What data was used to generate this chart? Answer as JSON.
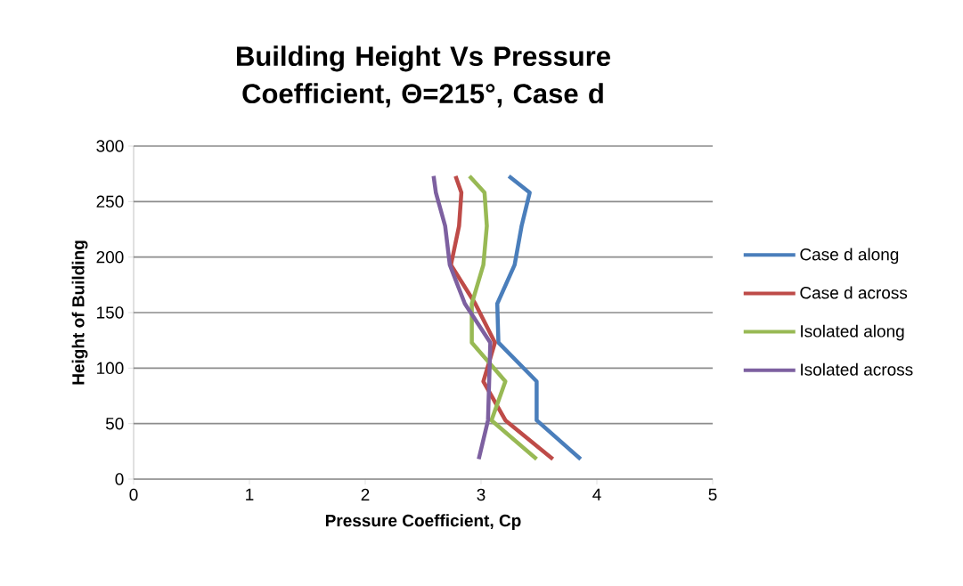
{
  "chart_data": {
    "type": "line",
    "title": "Building Height Vs Pressure Coefficient, Θ=215°, Case d",
    "xlabel": "Pressure Coefficient, Cp",
    "ylabel": "Height of Building",
    "xlim": [
      0,
      5
    ],
    "xticks": [
      0,
      1,
      2,
      3,
      4,
      5
    ],
    "ylim": [
      0,
      300
    ],
    "yticks": [
      0,
      50,
      100,
      150,
      200,
      250,
      300
    ],
    "grid": "y",
    "legend": "right",
    "marker": "none",
    "line_style": "solid",
    "series": [
      {
        "name": "Case d along",
        "color": "#4a7ebb",
        "x": [
          3.86,
          3.48,
          3.48,
          3.15,
          3.14,
          3.29,
          3.35,
          3.42,
          3.24
        ],
        "values": [
          18,
          53,
          88,
          123,
          158,
          193,
          228,
          258,
          273
        ]
      },
      {
        "name": "Case d across",
        "color": "#be4b48",
        "x": [
          3.62,
          3.21,
          3.02,
          3.12,
          2.95,
          2.74,
          2.81,
          2.83,
          2.78
        ],
        "values": [
          18,
          53,
          88,
          123,
          158,
          193,
          228,
          258,
          273
        ]
      },
      {
        "name": "Isolated along",
        "color": "#98b954",
        "x": [
          3.48,
          3.09,
          3.21,
          2.92,
          2.92,
          3.02,
          3.05,
          3.03,
          2.9
        ],
        "values": [
          18,
          53,
          88,
          123,
          158,
          193,
          228,
          258,
          273
        ]
      },
      {
        "name": "Isolated across",
        "color": "#7d60a0",
        "x": [
          2.98,
          3.06,
          3.07,
          3.08,
          2.86,
          2.73,
          2.69,
          2.61,
          2.59
        ],
        "values": [
          18,
          53,
          88,
          123,
          158,
          193,
          228,
          258,
          273
        ]
      }
    ]
  }
}
